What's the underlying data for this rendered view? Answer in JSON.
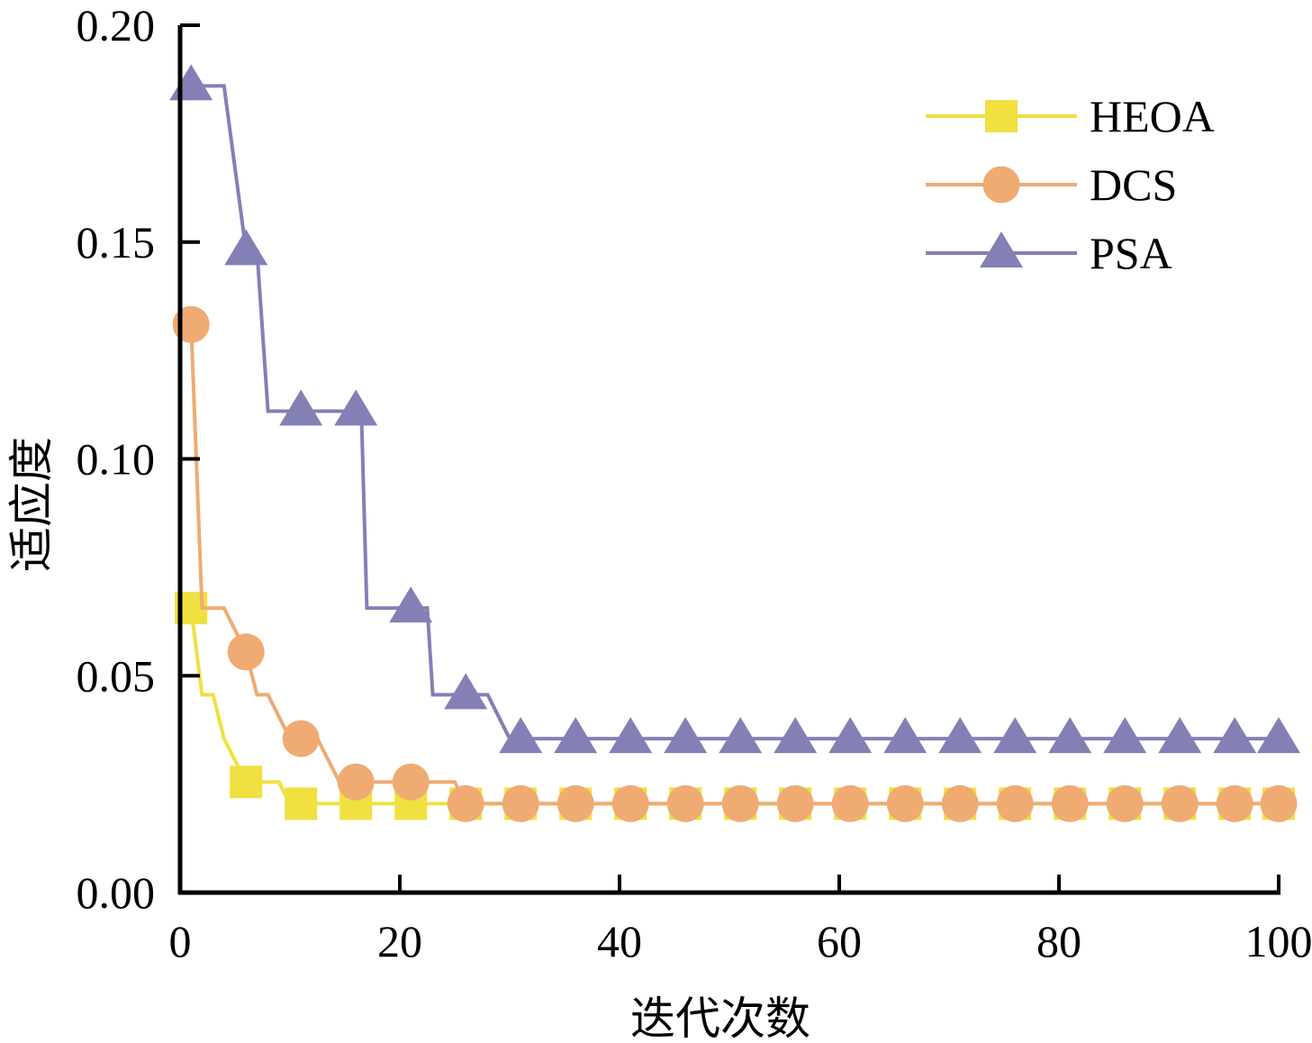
{
  "chart_data": {
    "type": "line",
    "title": "",
    "xlabel": "迭代次数",
    "ylabel": "适应度",
    "xlim": [
      0,
      100
    ],
    "ylim": [
      0,
      0.2
    ],
    "xticks": [
      0,
      20,
      40,
      60,
      80,
      100
    ],
    "xtick_labels": [
      "0",
      "20",
      "40",
      "60",
      "80",
      "100"
    ],
    "yticks": [
      0,
      0.05,
      0.1,
      0.15,
      0.2
    ],
    "ytick_labels": [
      "0.00",
      "0.05",
      "0.10",
      "0.15",
      "0.20"
    ],
    "grid": false,
    "legend_position": "top-right",
    "marker_x": [
      1,
      6,
      11,
      16,
      21,
      26,
      31,
      36,
      41,
      46,
      51,
      56,
      61,
      66,
      71,
      76,
      81,
      86,
      91,
      96,
      100
    ],
    "series": [
      {
        "name": "HEOA",
        "color": "#F0E040",
        "marker": "square",
        "line": [
          [
            1,
            0.0656
          ],
          [
            2,
            0.0456
          ],
          [
            3,
            0.0456
          ],
          [
            4,
            0.0355
          ],
          [
            6,
            0.0255
          ],
          [
            9,
            0.0255
          ],
          [
            10,
            0.0205
          ],
          [
            100,
            0.0205
          ]
        ]
      },
      {
        "name": "DCS",
        "color": "#EFAB72",
        "marker": "circle",
        "line": [
          [
            1,
            0.131
          ],
          [
            2,
            0.0656
          ],
          [
            4,
            0.0656
          ],
          [
            6,
            0.0555
          ],
          [
            7,
            0.0456
          ],
          [
            8,
            0.0456
          ],
          [
            10,
            0.0355
          ],
          [
            12.5,
            0.0355
          ],
          [
            14.5,
            0.0255
          ],
          [
            25,
            0.0255
          ],
          [
            26,
            0.0205
          ],
          [
            100,
            0.0205
          ]
        ]
      },
      {
        "name": "PSA",
        "color": "#8380B6",
        "marker": "triangle",
        "line": [
          [
            1,
            0.186
          ],
          [
            4,
            0.186
          ],
          [
            6,
            0.148
          ],
          [
            7,
            0.148
          ],
          [
            8,
            0.111
          ],
          [
            16.5,
            0.111
          ],
          [
            17,
            0.0656
          ],
          [
            22.5,
            0.0656
          ],
          [
            23,
            0.0456
          ],
          [
            28,
            0.0456
          ],
          [
            30,
            0.0355
          ],
          [
            100,
            0.0355
          ]
        ]
      }
    ]
  }
}
